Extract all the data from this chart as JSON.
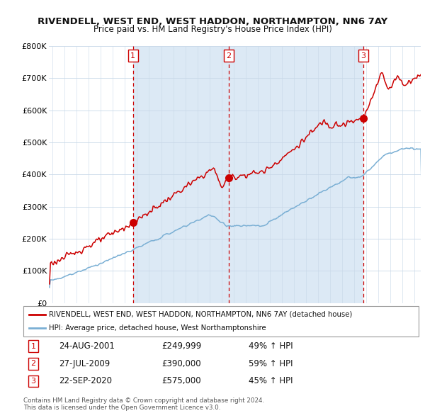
{
  "title": "RIVENDELL, WEST END, WEST HADDON, NORTHAMPTON, NN6 7AY",
  "subtitle": "Price paid vs. HM Land Registry's House Price Index (HPI)",
  "legend_property": "RIVENDELL, WEST END, WEST HADDON, NORTHAMPTON, NN6 7AY (detached house)",
  "legend_hpi": "HPI: Average price, detached house, West Northamptonshire",
  "footnote1": "Contains HM Land Registry data © Crown copyright and database right 2024.",
  "footnote2": "This data is licensed under the Open Government Licence v3.0.",
  "sale_points": [
    {
      "num": 1,
      "date": "24-AUG-2001",
      "price": 249999,
      "pct": "49%",
      "dir": "↑"
    },
    {
      "num": 2,
      "date": "27-JUL-2009",
      "price": 390000,
      "pct": "59%",
      "dir": "↑"
    },
    {
      "num": 3,
      "date": "22-SEP-2020",
      "price": 575000,
      "pct": "45%",
      "dir": "↑"
    }
  ],
  "property_color": "#cc0000",
  "hpi_color": "#7aafd4",
  "shade_color": "#dce9f5",
  "plot_bg": "#ffffff",
  "ylim": [
    0,
    800000
  ],
  "yticks": [
    0,
    100000,
    200000,
    300000,
    400000,
    500000,
    600000,
    700000,
    800000
  ],
  "xlim_start": 1994.7,
  "xlim_end": 2025.5,
  "vline_color": "#cc0000",
  "badge_facecolor": "white",
  "badge_edgecolor": "#cc0000"
}
